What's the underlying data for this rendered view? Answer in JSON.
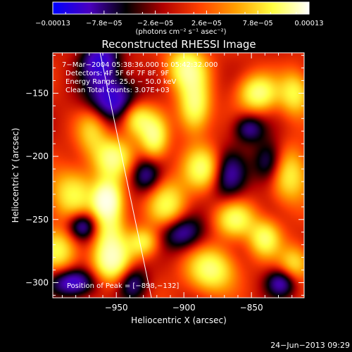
{
  "chart_data": {
    "type": "heatmap",
    "title": "Reconstructed RHESSI Image",
    "xlabel": "Heliocentric X (arcsec)",
    "ylabel": "Heliocentric Y (arcsec)",
    "x_ticks": [
      -950,
      -900,
      -850
    ],
    "x_tick_labels": [
      "−950",
      "−900",
      "−850"
    ],
    "y_ticks": [
      -150,
      -200,
      -250,
      -300
    ],
    "y_tick_labels": [
      "−150",
      "−200",
      "−250",
      "−300"
    ],
    "xlim": [
      -997,
      -811
    ],
    "ylim": [
      -312,
      -118
    ],
    "colorbar": {
      "tick_labels": [
        "−0.00013",
        "−7.8e−05",
        "−2.6e−05",
        "2.6e−05",
        "7.8e−05",
        "0.00013"
      ],
      "range": [
        -0.00013,
        0.00013
      ],
      "unit_label": "(photons cm⁻² s⁻¹ asec⁻²)",
      "colormap": [
        "#0000ff",
        "#4a00c0",
        "#000000",
        "#b00000",
        "#ff4000",
        "#ffa000",
        "#ffff40",
        "#ffffff"
      ]
    },
    "annotations": [
      "7−Mar−2004 05:38:36.000 to 05:42:32.000",
      "Detectors: 4F 5F 6F 7F 8F, 9F",
      "Energy Range: 25.0 − 50.0 keV",
      "Clean     Total counts: 3.07E+03"
    ],
    "peak_label": "Position of Peak = [−898,−132]",
    "peak": [
      -898,
      -132
    ],
    "limb_line": [
      [
        -962,
        -118
      ],
      [
        -924,
        -312
      ]
    ],
    "blobs": [
      {
        "x": -962,
        "y": -125,
        "sx": 10,
        "sy": 12,
        "a": -1.0
      },
      {
        "x": -953,
        "y": -155,
        "sx": 14,
        "sy": 12,
        "a": -1.0
      },
      {
        "x": -968,
        "y": -180,
        "sx": 8,
        "sy": 14,
        "a": 0.6
      },
      {
        "x": -952,
        "y": -200,
        "sx": 10,
        "sy": 10,
        "a": 0.8
      },
      {
        "x": -982,
        "y": -230,
        "sx": 12,
        "sy": 14,
        "a": 0.8
      },
      {
        "x": -955,
        "y": -245,
        "sx": 8,
        "sy": 25,
        "a": 1.0
      },
      {
        "x": -958,
        "y": -235,
        "sx": 6,
        "sy": 8,
        "a": 0.9
      },
      {
        "x": -953,
        "y": -283,
        "sx": 10,
        "sy": 12,
        "a": 1.0
      },
      {
        "x": -993,
        "y": -275,
        "sx": 10,
        "sy": 12,
        "a": 0.8
      },
      {
        "x": -982,
        "y": -300,
        "sx": 12,
        "sy": 8,
        "a": -1.0
      },
      {
        "x": -935,
        "y": -170,
        "sx": 8,
        "sy": 10,
        "a": 0.9
      },
      {
        "x": -922,
        "y": -185,
        "sx": 7,
        "sy": 12,
        "a": 0.95
      },
      {
        "x": -912,
        "y": -240,
        "sx": 10,
        "sy": 15,
        "a": 0.85
      },
      {
        "x": -930,
        "y": -268,
        "sx": 8,
        "sy": 8,
        "a": 0.8
      },
      {
        "x": -898,
        "y": -130,
        "sx": 10,
        "sy": 12,
        "a": 1.0
      },
      {
        "x": -892,
        "y": -160,
        "sx": 8,
        "sy": 15,
        "a": 1.0
      },
      {
        "x": -885,
        "y": -210,
        "sx": 10,
        "sy": 12,
        "a": 1.0
      },
      {
        "x": -880,
        "y": -290,
        "sx": 12,
        "sy": 12,
        "a": 1.0
      },
      {
        "x": -862,
        "y": -250,
        "sx": 10,
        "sy": 10,
        "a": 0.9
      },
      {
        "x": -845,
        "y": -150,
        "sx": 10,
        "sy": 10,
        "a": 1.0
      },
      {
        "x": -840,
        "y": -265,
        "sx": 8,
        "sy": 10,
        "a": 0.9
      },
      {
        "x": -822,
        "y": -215,
        "sx": 10,
        "sy": 15,
        "a": 0.8
      },
      {
        "x": -818,
        "y": -285,
        "sx": 8,
        "sy": 10,
        "a": 0.7
      },
      {
        "x": -818,
        "y": -150,
        "sx": 8,
        "sy": 12,
        "a": 0.8
      },
      {
        "x": -903,
        "y": -260,
        "sx": 12,
        "sy": 10,
        "a": -0.9
      },
      {
        "x": -868,
        "y": -215,
        "sx": 10,
        "sy": 14,
        "a": -0.8
      },
      {
        "x": -852,
        "y": -178,
        "sx": 8,
        "sy": 8,
        "a": -0.7
      },
      {
        "x": -837,
        "y": -205,
        "sx": 8,
        "sy": 12,
        "a": -0.75
      },
      {
        "x": -928,
        "y": -215,
        "sx": 8,
        "sy": 10,
        "a": -0.7
      },
      {
        "x": -938,
        "y": -300,
        "sx": 8,
        "sy": 10,
        "a": -0.7
      },
      {
        "x": -975,
        "y": -255,
        "sx": 8,
        "sy": 8,
        "a": -0.9
      },
      {
        "x": -828,
        "y": -300,
        "sx": 8,
        "sy": 8,
        "a": -0.8
      }
    ]
  },
  "footer": {
    "date": "24−Jun−2013 09:29"
  }
}
